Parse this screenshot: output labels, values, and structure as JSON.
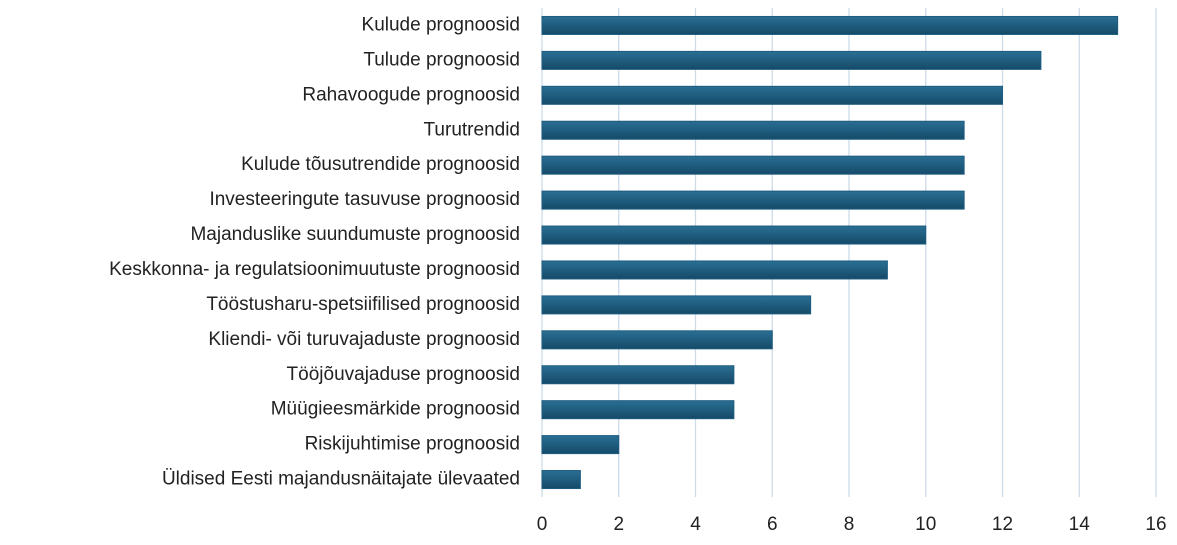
{
  "chart_data": {
    "type": "bar",
    "orientation": "horizontal",
    "categories": [
      "Kulude prognoosid",
      "Tulude prognoosid",
      "Rahavoogude prognoosid",
      "Turutrendid",
      "Kulude tõusutrendide prognoosid",
      "Investeeringute tasuvuse prognoosid",
      "Majanduslike suundumuste prognoosid",
      "Keskkonna- ja regulatsioonimuutuste prognoosid",
      "Tööstusharu-spetsiifilised prognoosid",
      "Kliendi- või turuvajaduste prognoosid",
      "Tööjõuvajaduse prognoosid",
      "Müügieesmärkide prognoosid",
      "Riskijuhtimise prognoosid",
      "Üldised Eesti majandusnäitajate ülevaated"
    ],
    "values": [
      15,
      13,
      12,
      11,
      11,
      11,
      10,
      9,
      7,
      6,
      5,
      5,
      2,
      1
    ],
    "color": "#1d5c80",
    "xlim": [
      0,
      16
    ],
    "xticks": [
      0,
      2,
      4,
      6,
      8,
      10,
      12,
      14,
      16
    ],
    "grid": true
  }
}
